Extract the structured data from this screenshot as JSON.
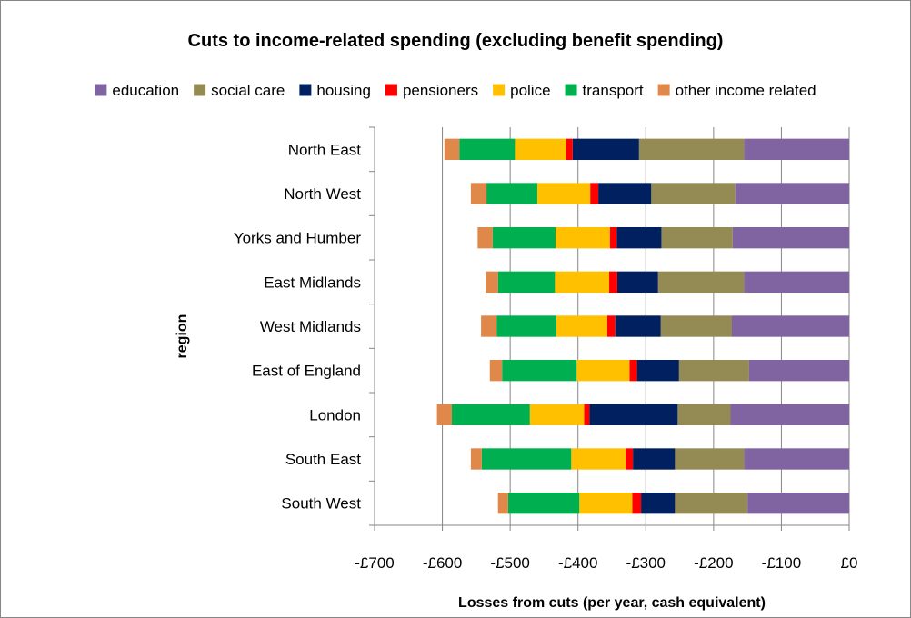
{
  "chart_data": {
    "type": "bar",
    "orientation": "horizontal",
    "stacked": true,
    "title": "Cuts to income-related spending (excluding benefit spending)",
    "xlabel": "Losses from cuts (per year, cash equivalent)",
    "ylabel": "region",
    "xlim": [
      -700,
      0
    ],
    "x_ticks": [
      -700,
      -600,
      -500,
      -400,
      -300,
      -200,
      -100,
      0
    ],
    "x_tick_labels": [
      "-£700",
      "-£600",
      "-£500",
      "-£400",
      "-£300",
      "-£200",
      "-£100",
      "£0"
    ],
    "grid": "vertical",
    "legend_position": "top",
    "categories": [
      "North East",
      "North West",
      "Yorks and Humber",
      "East Midlands",
      "West Midlands",
      "East of England",
      "London",
      "South East",
      "South West"
    ],
    "series": [
      {
        "name": "education",
        "color": "#8064A2",
        "values": [
          -155,
          -168,
          -172,
          -155,
          -173,
          -148,
          -175,
          -155,
          -150
        ]
      },
      {
        "name": "social care",
        "color": "#948A54",
        "values": [
          -155,
          -124,
          -105,
          -127,
          -105,
          -103,
          -78,
          -102,
          -107
        ]
      },
      {
        "name": "housing",
        "color": "#002060",
        "values": [
          -98,
          -78,
          -66,
          -60,
          -67,
          -62,
          -130,
          -62,
          -50
        ]
      },
      {
        "name": "pensioners",
        "color": "#FF0000",
        "values": [
          -10,
          -12,
          -10,
          -12,
          -12,
          -11,
          -8,
          -11,
          -13
        ]
      },
      {
        "name": "police",
        "color": "#FFC000",
        "values": [
          -75,
          -78,
          -80,
          -80,
          -75,
          -78,
          -80,
          -80,
          -78
        ]
      },
      {
        "name": "transport",
        "color": "#00B050",
        "values": [
          -82,
          -75,
          -93,
          -84,
          -88,
          -110,
          -115,
          -132,
          -105
        ]
      },
      {
        "name": "other income related",
        "color": "#E0884A",
        "values": [
          -22,
          -23,
          -22,
          -18,
          -23,
          -18,
          -22,
          -16,
          -15
        ]
      }
    ]
  }
}
